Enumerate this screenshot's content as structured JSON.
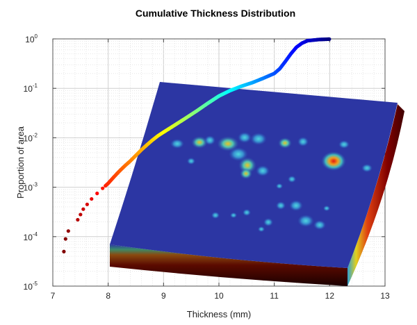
{
  "chart_data": {
    "type": "scatter",
    "title": "Cumulative Thickness Distribution",
    "xlabel": "Thickness (mm)",
    "ylabel": "Proportion of area",
    "xlim": [
      7,
      13
    ],
    "ylim": [
      1e-05,
      1
    ],
    "yscale": "log",
    "x_ticks": [
      "7",
      "8",
      "9",
      "10",
      "11",
      "12",
      "13"
    ],
    "y_ticks": [
      {
        "base": "10",
        "exp": "-5",
        "value": 1e-05
      },
      {
        "base": "10",
        "exp": "-4",
        "value": 0.0001
      },
      {
        "base": "10",
        "exp": "-3",
        "value": 0.001
      },
      {
        "base": "10",
        "exp": "-2",
        "value": 0.01
      },
      {
        "base": "10",
        "exp": "-1",
        "value": 0.1
      },
      {
        "base": "10",
        "exp": "0",
        "value": 1
      }
    ],
    "grid": true,
    "colormap": "jet",
    "series": [
      {
        "x": [
          7.2,
          7.23,
          7.28,
          7.45,
          7.5,
          7.55,
          7.62,
          7.7,
          7.8,
          7.9,
          8.0,
          8.1,
          8.2,
          8.3,
          8.4,
          8.5,
          8.6,
          8.7,
          8.8,
          8.9,
          9.0,
          9.2,
          9.4,
          9.6,
          9.8,
          10.0,
          10.2,
          10.4,
          10.6,
          10.8,
          11.0,
          11.1,
          11.2,
          11.3,
          11.4,
          11.5,
          11.6,
          11.8,
          12.0
        ],
        "y": [
          5e-05,
          9e-05,
          0.00013,
          0.00022,
          0.00028,
          0.00036,
          0.00045,
          0.00058,
          0.00075,
          0.00095,
          0.0012,
          0.0016,
          0.0021,
          0.0027,
          0.0034,
          0.0044,
          0.0057,
          0.0072,
          0.009,
          0.011,
          0.013,
          0.018,
          0.025,
          0.035,
          0.05,
          0.07,
          0.09,
          0.11,
          0.13,
          0.16,
          0.2,
          0.25,
          0.35,
          0.5,
          0.68,
          0.82,
          0.92,
          0.97,
          0.99
        ]
      }
    ],
    "inset_surface": {
      "description": "3D thickness surface map",
      "colormap": "jet"
    }
  }
}
